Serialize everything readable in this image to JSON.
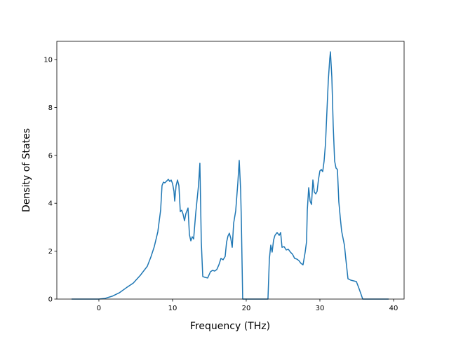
{
  "chart_data": {
    "type": "line",
    "x_label": "Frequency (THz)",
    "y_label": "Density of States",
    "color": "#1f77b4",
    "xlim": [
      -5.71,
      41.43
    ],
    "ylim": [
      0,
      10.76
    ],
    "xticks": [
      0,
      10,
      20,
      30,
      40
    ],
    "yticks": [
      0,
      2,
      4,
      6,
      8,
      10
    ],
    "x": [
      -3.71,
      0,
      0.86,
      1.81,
      2.76,
      3.71,
      4.67,
      5.62,
      6.57,
      7.05,
      7.52,
      8.0,
      8.38,
      8.57,
      8.76,
      8.95,
      9.24,
      9.43,
      9.62,
      9.81,
      10.0,
      10.19,
      10.29,
      10.48,
      10.67,
      10.86,
      11.05,
      11.24,
      11.43,
      11.62,
      11.81,
      12.1,
      12.29,
      12.48,
      12.67,
      12.86,
      13.14,
      13.52,
      13.71,
      13.9,
      14.1,
      14.38,
      14.76,
      15.14,
      15.43,
      15.71,
      16.0,
      16.29,
      16.57,
      16.86,
      17.14,
      17.33,
      17.52,
      17.71,
      17.9,
      18.1,
      18.29,
      18.57,
      18.86,
      19.05,
      19.24,
      19.33,
      19.52,
      22.95,
      23.14,
      23.33,
      23.52,
      23.71,
      23.9,
      24.19,
      24.48,
      24.67,
      24.86,
      25.14,
      25.43,
      25.71,
      26.0,
      26.29,
      26.57,
      26.86,
      27.14,
      27.43,
      27.71,
      28.0,
      28.19,
      28.29,
      28.48,
      28.67,
      28.86,
      29.05,
      29.24,
      29.43,
      29.62,
      29.81,
      30.0,
      30.19,
      30.38,
      30.57,
      30.76,
      30.95,
      31.14,
      31.33,
      31.43,
      31.62,
      31.81,
      32.0,
      32.19,
      32.38,
      32.57,
      32.76,
      32.95,
      33.14,
      33.33,
      33.52,
      33.81,
      34.19,
      34.57,
      34.95,
      35.24,
      35.52,
      35.81,
      39.33
    ],
    "y": [
      0,
      0,
      0.03,
      0.12,
      0.26,
      0.47,
      0.67,
      0.99,
      1.37,
      1.75,
      2.19,
      2.81,
      3.71,
      4.74,
      4.88,
      4.85,
      4.94,
      5.0,
      4.91,
      4.97,
      4.82,
      4.5,
      4.09,
      4.74,
      4.97,
      4.74,
      3.65,
      3.71,
      3.54,
      3.27,
      3.57,
      3.8,
      2.69,
      2.43,
      2.6,
      2.51,
      3.57,
      4.74,
      5.67,
      2.4,
      0.94,
      0.91,
      0.88,
      1.14,
      1.2,
      1.17,
      1.23,
      1.43,
      1.7,
      1.64,
      1.78,
      2.37,
      2.63,
      2.75,
      2.54,
      2.16,
      3.16,
      3.68,
      4.85,
      5.79,
      4.56,
      3.39,
      0,
      0,
      1.67,
      2.25,
      1.96,
      2.46,
      2.66,
      2.78,
      2.66,
      2.78,
      2.16,
      2.19,
      2.05,
      2.08,
      1.96,
      1.87,
      1.7,
      1.67,
      1.61,
      1.49,
      1.43,
      1.96,
      2.4,
      3.71,
      4.65,
      4.09,
      3.95,
      4.97,
      4.47,
      4.39,
      4.5,
      5.0,
      5.35,
      5.41,
      5.32,
      5.76,
      6.49,
      7.81,
      9.12,
      10.0,
      10.32,
      9.27,
      7.22,
      5.76,
      5.47,
      5.41,
      4.06,
      3.42,
      2.84,
      2.54,
      2.25,
      1.67,
      0.85,
      0.79,
      0.76,
      0.73,
      0.5,
      0.26,
      0,
      0
    ]
  }
}
